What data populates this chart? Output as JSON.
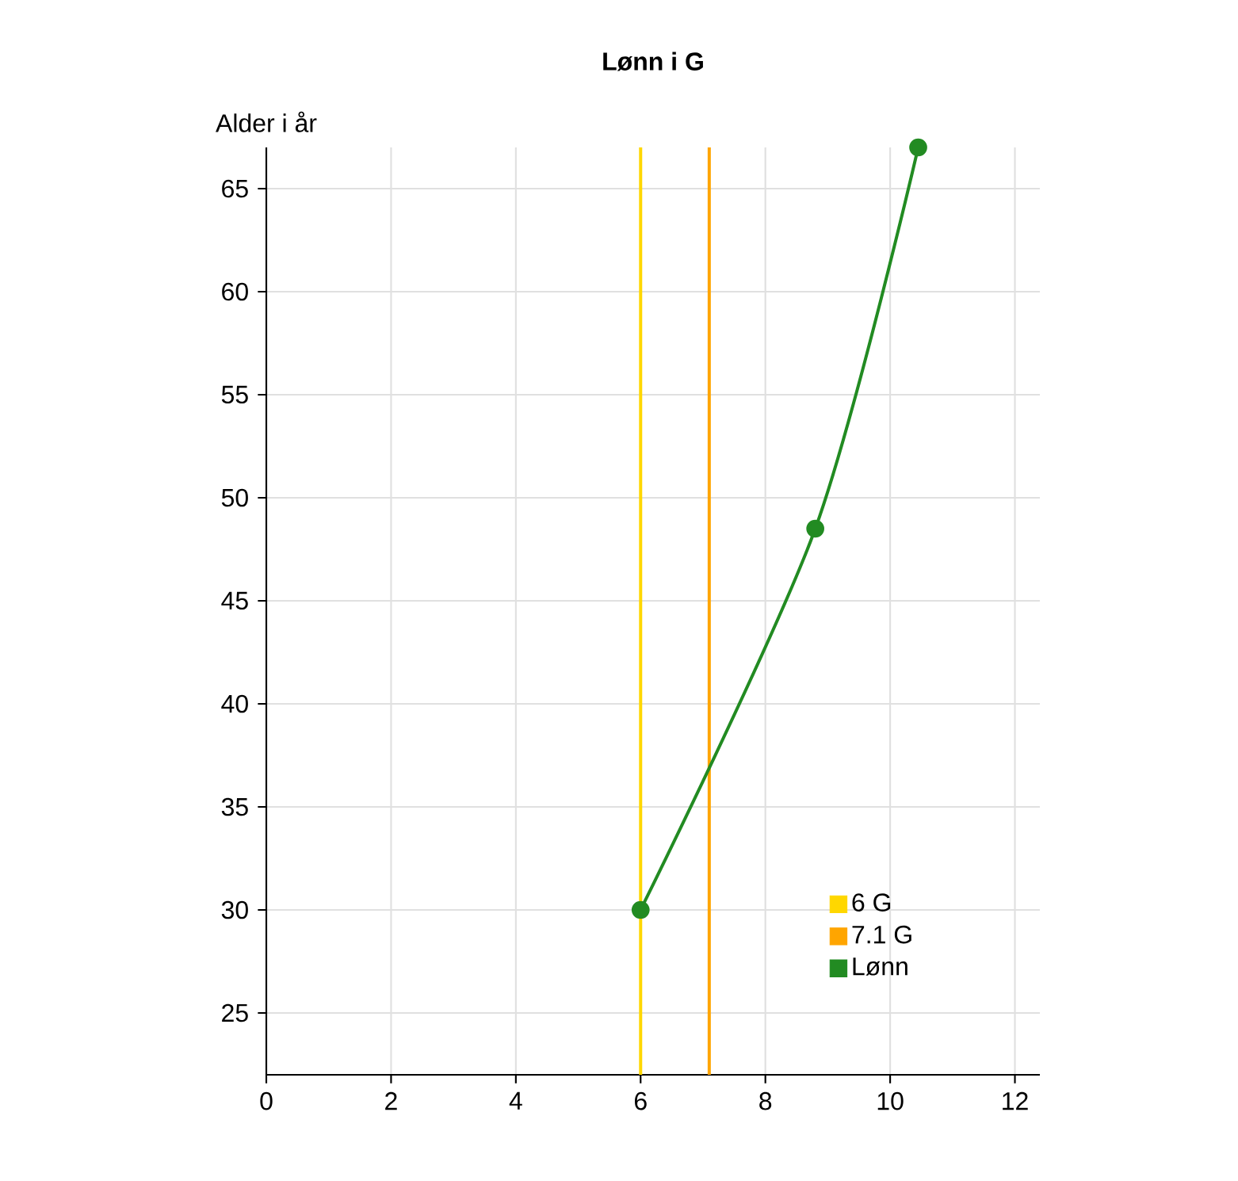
{
  "chart_data": {
    "type": "line",
    "title": "Lønn i G",
    "ylabel": "Alder i år",
    "xlim": [
      0,
      12.4
    ],
    "xticks": [
      0,
      2,
      4,
      6,
      8,
      10,
      12
    ],
    "ylim": [
      22,
      67
    ],
    "yticks": [
      25,
      30,
      35,
      40,
      45,
      50,
      55,
      60,
      65
    ],
    "grid": true,
    "legend": "bottom right",
    "marker": "circle",
    "line_style": "solid",
    "series": [
      {
        "name": "6 G",
        "color": "#ffd700",
        "marker": "none",
        "x": [
          6,
          6
        ],
        "values": [
          22,
          67
        ]
      },
      {
        "name": "7.1 G",
        "color": "#ffa500",
        "marker": "none",
        "x": [
          7.1,
          7.1
        ],
        "values": [
          22,
          67
        ]
      },
      {
        "name": "Lønn",
        "color": "#228b22",
        "x": [
          6,
          8.8,
          10.45
        ],
        "values": [
          30,
          48.5,
          67
        ]
      }
    ]
  }
}
